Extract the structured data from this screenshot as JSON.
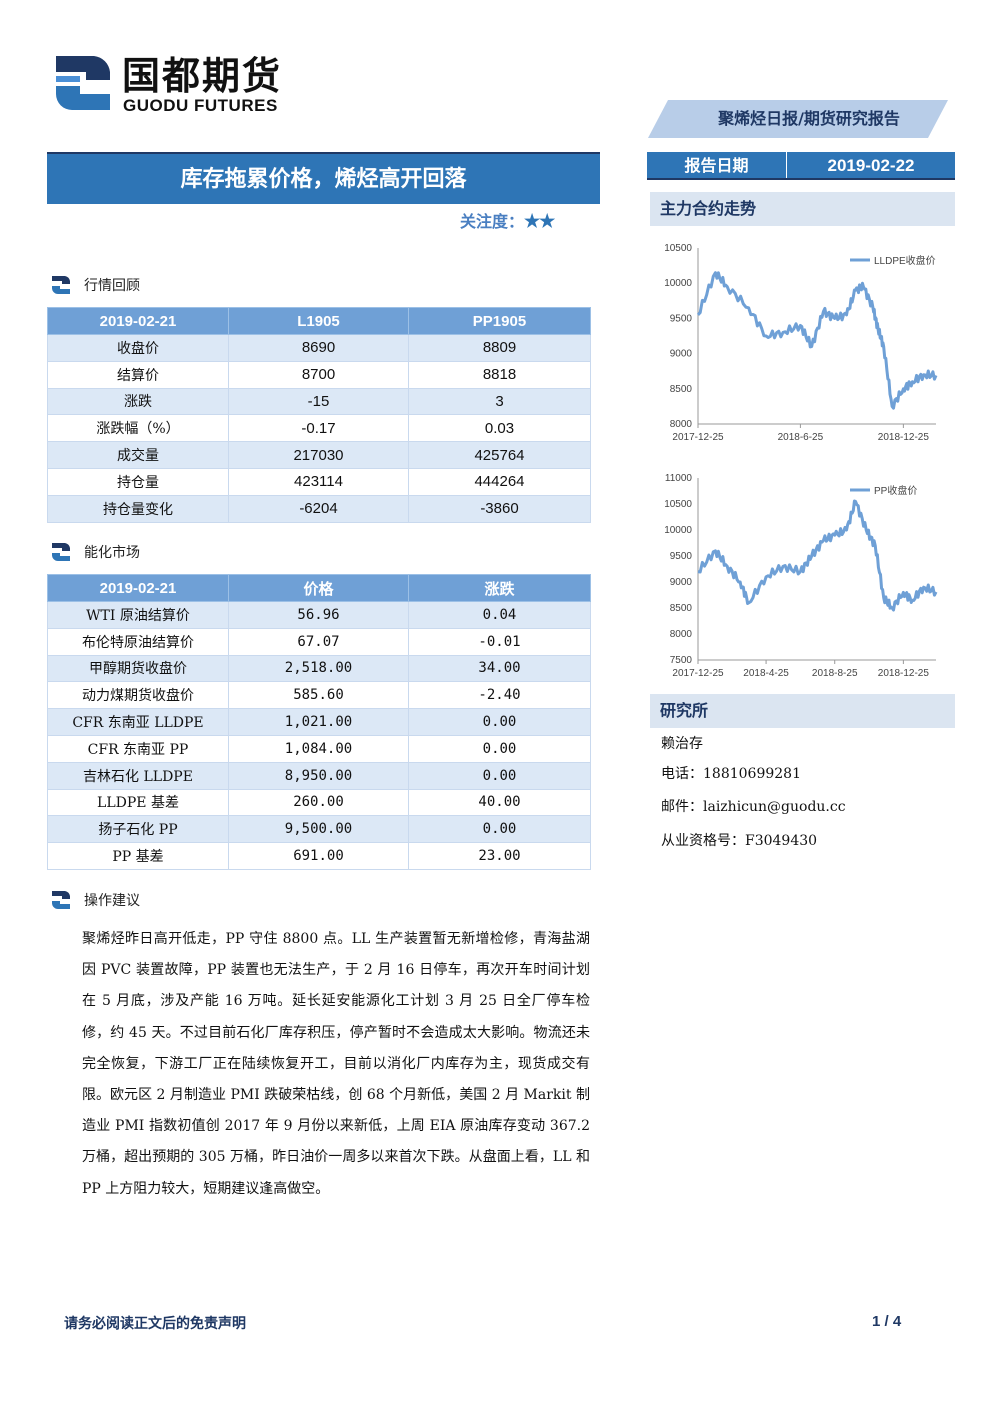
{
  "header": {
    "logo_cn": "国都期货",
    "logo_en": "GUODU FUTURES",
    "report_tag": "聚烯烃日报/期货研究报告",
    "title": "库存拖累价格，烯烃高开回落",
    "focus_label": "关注度：",
    "focus_stars": "★★",
    "date_label": "报告日期",
    "date_value": "2019-02-22"
  },
  "colors": {
    "primary": "#2e75b6",
    "dark": "#1f3864",
    "table_header": "#6fa0d6",
    "row_alt": "#dce8f6",
    "line": "#6fa0d6"
  },
  "market_review": {
    "heading": "行情回顾",
    "columns": [
      "2019-02-21",
      "L1905",
      "PP1905"
    ],
    "rows": [
      [
        "收盘价",
        "8690",
        "8809"
      ],
      [
        "结算价",
        "8700",
        "8818"
      ],
      [
        "涨跌",
        "-15",
        "3"
      ],
      [
        "涨跌幅（%）",
        "-0.17",
        "0.03"
      ],
      [
        "成交量",
        "217030",
        "425764"
      ],
      [
        "持仓量",
        "423114",
        "444264"
      ],
      [
        "持仓量变化",
        "-6204",
        "-3860"
      ]
    ]
  },
  "energy_market": {
    "heading": "能化市场",
    "columns": [
      "2019-02-21",
      "价格",
      "涨跌"
    ],
    "rows": [
      [
        "WTI 原油结算价",
        "56.96",
        "0.04"
      ],
      [
        "布伦特原油结算价",
        "67.07",
        "-0.01"
      ],
      [
        "甲醇期货收盘价",
        "2,518.00",
        "34.00"
      ],
      [
        "动力煤期货收盘价",
        "585.60",
        "-2.40"
      ],
      [
        "CFR 东南亚 LLDPE",
        "1,021.00",
        "0.00"
      ],
      [
        "CFR 东南亚 PP",
        "1,084.00",
        "0.00"
      ],
      [
        "吉林石化 LLDPE",
        "8,950.00",
        "0.00"
      ],
      [
        "LLDPE 基差",
        "260.00",
        "40.00"
      ],
      [
        "扬子石化 PP",
        "9,500.00",
        "0.00"
      ],
      [
        "PP 基差",
        "691.00",
        "23.00"
      ]
    ]
  },
  "advice": {
    "heading": "操作建议",
    "text": "聚烯烃昨日高开低走，PP 守住 8800 点。LL 生产装置暂无新增检修，青海盐湖因 PVC 装置故障，PP 装置也无法生产，于 2 月 16 日停车，再次开车时间计划在 5 月底，涉及产能 16 万吨。延长延安能源化工计划 3 月 25 日全厂停车检修，约 45 天。不过目前石化厂库存积压，停产暂时不会造成太大影响。物流还未完全恢复，下游工厂正在陆续恢复开工，目前以消化厂内库存为主，现货成交有限。欧元区 2 月制造业 PMI 跌破荣枯线，创 68 个月新低，美国 2 月 Markit 制造业 PMI 指数初值创 2017 年 9 月份以来新低，上周 EIA 原油库存变动 367.2 万桶，超出预期的 305 万桶，昨日油价一周多以来首次下跌。从盘面上看，LL 和 PP 上方阻力较大，短期建议逢高做空。"
  },
  "sidebar": {
    "trend_heading": "主力合约走势",
    "institute_heading": "研究所",
    "analyst": "赖治存",
    "phone": "电话：18810699281",
    "email": "邮件：laizhicun@guodu.cc",
    "license": "从业资格号：F3049430"
  },
  "chart_data": [
    {
      "type": "line",
      "series": [
        {
          "name": "LLDPE收盘价",
          "values": [
            9550,
            10150,
            9950,
            9650,
            9250,
            9300,
            9400,
            9100,
            9600,
            9500,
            9550,
            9900,
            9950,
            9650,
            9350,
            9100,
            8250,
            8500,
            8600,
            8700,
            8690
          ]
        }
      ],
      "x": [
        "2017-12-25",
        "2018-01-25",
        "2018-02-15",
        "2018-03-25",
        "2018-04-25",
        "2018-05-25",
        "2018-06-25",
        "2018-07-15",
        "2018-08-05",
        "2018-08-25",
        "2018-09-15",
        "2018-10-01",
        "2018-10-15",
        "2018-11-01",
        "2018-11-10",
        "2018-11-20",
        "2018-12-05",
        "2018-12-25",
        "2019-01-10",
        "2019-01-30",
        "2019-02-21"
      ],
      "x_ticks": [
        "2017-12-25",
        "2018-6-25",
        "2018-12-25"
      ],
      "y_ticks": [
        "8000",
        "8500",
        "9000",
        "9500",
        "10000",
        "10500"
      ],
      "ylim": [
        8000,
        10500
      ]
    },
    {
      "type": "line",
      "series": [
        {
          "name": "PP收盘价",
          "values": [
            9200,
            9600,
            9300,
            9000,
            8600,
            9100,
            9300,
            9200,
            9500,
            9800,
            9900,
            10000,
            10550,
            10000,
            9700,
            8700,
            8500,
            8800,
            8650,
            8900,
            8809
          ]
        }
      ],
      "x": [
        "2017-12-25",
        "2018-01-25",
        "2018-02-15",
        "2018-03-10",
        "2018-03-25",
        "2018-04-25",
        "2018-05-25",
        "2018-06-25",
        "2018-07-15",
        "2018-08-05",
        "2018-08-25",
        "2018-09-15",
        "2018-10-01",
        "2018-10-20",
        "2018-11-05",
        "2018-11-20",
        "2018-12-05",
        "2018-12-25",
        "2019-01-10",
        "2019-01-30",
        "2019-02-21"
      ],
      "x_ticks": [
        "2017-12-25",
        "2018-4-25",
        "2018-8-25",
        "2018-12-25"
      ],
      "y_ticks": [
        "7500",
        "8000",
        "8500",
        "9000",
        "9500",
        "10000",
        "10500",
        "11000"
      ],
      "ylim": [
        7500,
        11000
      ]
    }
  ],
  "footer": {
    "disclaimer": "请务必阅读正文后的免责声明",
    "page": "1 / 4"
  }
}
